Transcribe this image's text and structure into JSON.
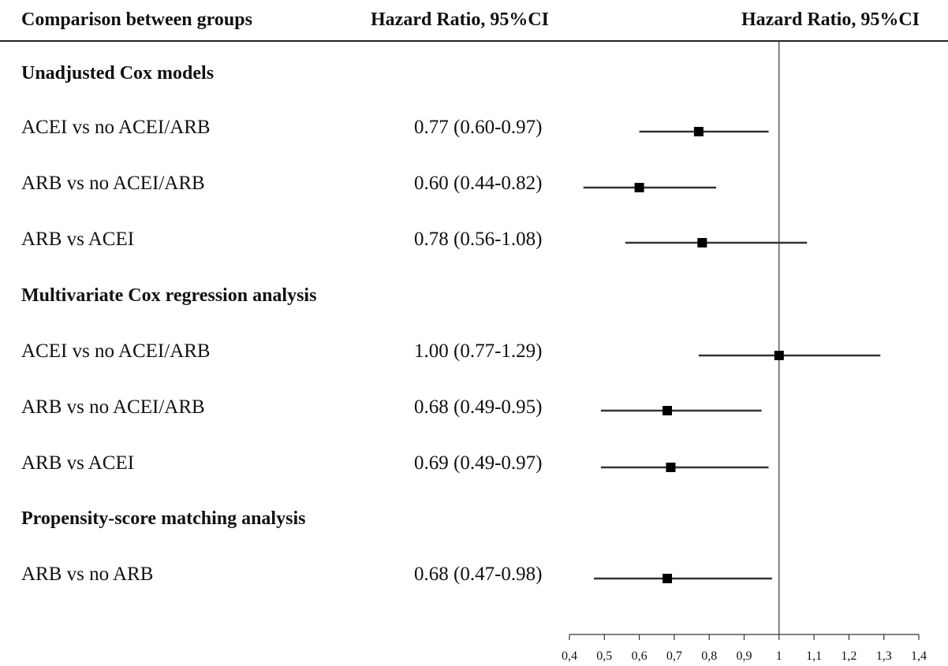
{
  "headers": {
    "comparison": "Comparison between groups",
    "hazard_ratio_text": "Hazard Ratio, 95%CI",
    "hazard_ratio_plot": "Hazard Ratio, 95%CI"
  },
  "sections": [
    {
      "title": "Unadjusted Cox models",
      "rows": [
        {
          "label": "ACEI vs no ACEI/ARB",
          "hr_text": "0.77 (0.60-0.97)"
        },
        {
          "label": "ARB vs no ACEI/ARB",
          "hr_text": "0.60 (0.44-0.82)"
        },
        {
          "label": "ARB vs ACEI",
          "hr_text": "0.78 (0.56-1.08)"
        }
      ]
    },
    {
      "title": "Multivariate Cox regression analysis",
      "rows": [
        {
          "label": "ACEI vs no ACEI/ARB",
          "hr_text": "1.00 (0.77-1.29)"
        },
        {
          "label": "ARB vs no ACEI/ARB",
          "hr_text": "0.68 (0.49-0.95)"
        },
        {
          "label": "ARB vs ACEI",
          "hr_text": "0.69 (0.49-0.97)"
        }
      ]
    },
    {
      "title": "Propensity-score matching analysis",
      "rows": [
        {
          "label": "ARB vs no ARB",
          "hr_text": "0.68 (0.47-0.98)"
        }
      ]
    }
  ],
  "chart_data": {
    "type": "forest",
    "xlim": [
      0.4,
      1.4
    ],
    "reference_line": 1,
    "x_ticks": [
      0.4,
      0.5,
      0.6,
      0.7,
      0.8,
      0.9,
      1,
      1.1,
      1.2,
      1.3,
      1.4
    ],
    "x_tick_labels": [
      "0,4",
      "0,5",
      "0,6",
      "0,7",
      "0,8",
      "0,9",
      "1",
      "1,1",
      "1,2",
      "1,3",
      "1,4"
    ],
    "points": [
      {
        "label": "ACEI vs no ACEI/ARB",
        "hr": 0.77,
        "lower": 0.6,
        "upper": 0.97
      },
      {
        "label": "ARB vs no ACEI/ARB",
        "hr": 0.6,
        "lower": 0.44,
        "upper": 0.82
      },
      {
        "label": "ARB vs ACEI",
        "hr": 0.78,
        "lower": 0.56,
        "upper": 1.08
      },
      {
        "label": "ACEI vs no ACEI/ARB",
        "hr": 1.0,
        "lower": 0.77,
        "upper": 1.29
      },
      {
        "label": "ARB vs no ACEI/ARB",
        "hr": 0.68,
        "lower": 0.49,
        "upper": 0.95
      },
      {
        "label": "ARB vs ACEI",
        "hr": 0.69,
        "lower": 0.49,
        "upper": 0.97
      },
      {
        "label": "ARB vs no ARB",
        "hr": 0.68,
        "lower": 0.47,
        "upper": 0.98
      }
    ]
  }
}
